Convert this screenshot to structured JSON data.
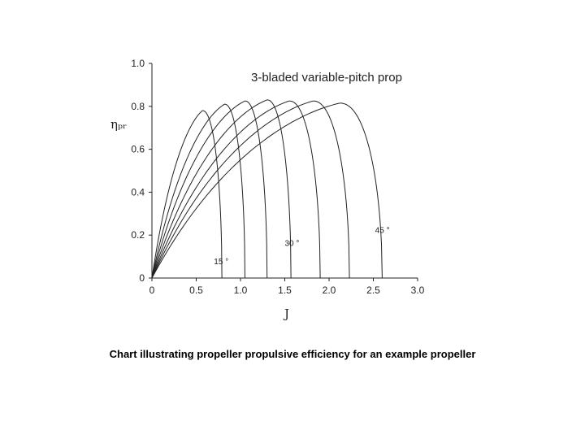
{
  "caption": "Chart illustrating propeller propulsive efficiency for an example propeller",
  "chart_data": {
    "type": "line",
    "title": "3-bladed variable-pitch prop",
    "xlabel": "J",
    "ylabel": "ηₚᵣ",
    "xlim": [
      0,
      3.0
    ],
    "ylim": [
      0,
      1.0
    ],
    "x_ticks": [
      "0",
      "0.5",
      "1.0",
      "1.5",
      "2.0",
      "2.5",
      "3.0"
    ],
    "y_ticks": [
      "0",
      "0.2",
      "0.4",
      "0.6",
      "0.8",
      "1.0"
    ],
    "grid": false,
    "line_color": "#222222",
    "series": [
      {
        "peak_x": 0.57,
        "peak_y": 0.78,
        "max_x": 0.79
      },
      {
        "peak_x": 0.82,
        "peak_y": 0.81,
        "max_x": 1.05
      },
      {
        "peak_x": 1.05,
        "peak_y": 0.825,
        "max_x": 1.3
      },
      {
        "peak_x": 1.3,
        "peak_y": 0.83,
        "max_x": 1.57
      },
      {
        "peak_x": 1.55,
        "peak_y": 0.825,
        "max_x": 1.9
      },
      {
        "peak_x": 1.82,
        "peak_y": 0.825,
        "max_x": 2.23
      },
      {
        "peak_x": 2.12,
        "peak_y": 0.815,
        "max_x": 2.6
      }
    ],
    "annotations": [
      {
        "text": "15 °",
        "x": 0.7,
        "y": 0.065
      },
      {
        "text": "30 °",
        "x": 1.5,
        "y": 0.15
      },
      {
        "text": "45 °",
        "x": 2.52,
        "y": 0.21
      }
    ]
  }
}
